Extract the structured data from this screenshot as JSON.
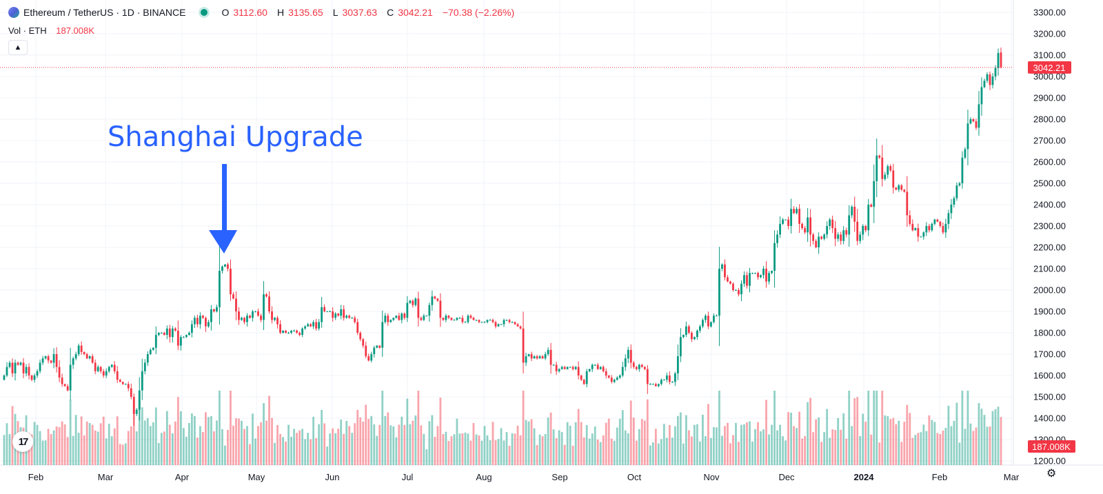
{
  "header": {
    "symbol": "Ethereum / TetherUS · 1D · BINANCE",
    "o_label": "O",
    "o_value": "3112.60",
    "h_label": "H",
    "h_value": "3135.65",
    "l_label": "L",
    "l_value": "3037.63",
    "c_label": "C",
    "c_value": "3042.21",
    "change": "−70.38 (−2.26%)"
  },
  "volume_legend": {
    "label": "Vol · ETH",
    "value": "187.008K"
  },
  "annotation": {
    "text": "Shanghai Upgrade"
  },
  "logo": {
    "text": "17"
  },
  "colors": {
    "up": "#089981",
    "down": "#f23645",
    "annotation": "#2962ff",
    "grid": "#f0f3fa"
  },
  "icons": {
    "collapse": "chevron-up-icon",
    "settings": "gear-icon",
    "logo": "tradingview-logo-icon"
  },
  "chart_data": {
    "type": "candlestick",
    "price_axis": {
      "min": 1200,
      "max": 3300,
      "ticks": [
        "3300.00",
        "3200.00",
        "3100.00",
        "3000.00",
        "2900.00",
        "2800.00",
        "2700.00",
        "2600.00",
        "2500.00",
        "2400.00",
        "2300.00",
        "2200.00",
        "2100.00",
        "2000.00",
        "1900.00",
        "1800.00",
        "1700.00",
        "1600.00",
        "1500.00",
        "1400.00",
        "1300.00",
        "1200.00"
      ]
    },
    "time_axis": {
      "labels": [
        "Feb",
        "Mar",
        "Apr",
        "May",
        "Jun",
        "Jul",
        "Aug",
        "Sep",
        "Oct",
        "Nov",
        "Dec",
        "2024",
        "Feb",
        "Mar"
      ],
      "bold": "2024"
    },
    "last_price": "3042.21",
    "last_volume": "187.008K",
    "daily_closes": [
      1600,
      1640,
      1660,
      1610,
      1660,
      1650,
      1660,
      1610,
      1640,
      1600,
      1580,
      1600,
      1620,
      1660,
      1680,
      1690,
      1670,
      1660,
      1700,
      1640,
      1590,
      1560,
      1550,
      1530,
      1650,
      1680,
      1700,
      1740,
      1710,
      1700,
      1680,
      1690,
      1660,
      1620,
      1640,
      1620,
      1600,
      1620,
      1640,
      1650,
      1620,
      1580,
      1570,
      1560,
      1560,
      1540,
      1500,
      1420,
      1440,
      1530,
      1620,
      1660,
      1700,
      1720,
      1730,
      1790,
      1800,
      1800,
      1790,
      1820,
      1780,
      1820,
      1810,
      1740,
      1780,
      1780,
      1790,
      1800,
      1840,
      1870,
      1840,
      1880,
      1870,
      1830,
      1850,
      1910,
      1900,
      1920,
      2090,
      2110,
      2120,
      2100,
      1980,
      1960,
      1900,
      1860,
      1870,
      1850,
      1880,
      1870,
      1900,
      1900,
      1880,
      1860,
      1980,
      1970,
      1900,
      1860,
      1870,
      1840,
      1800,
      1810,
      1800,
      1800,
      1810,
      1810,
      1800,
      1790,
      1820,
      1830,
      1840,
      1830,
      1850,
      1820,
      1850,
      1920,
      1900,
      1900,
      1900,
      1870,
      1890,
      1880,
      1910,
      1870,
      1880,
      1870,
      1870,
      1850,
      1800,
      1770,
      1740,
      1690,
      1670,
      1700,
      1730,
      1740,
      1730,
      1850,
      1880,
      1850,
      1860,
      1870,
      1880,
      1860,
      1890,
      1870,
      1940,
      1950,
      1930,
      1960,
      1870,
      1860,
      1880,
      1880,
      1930,
      1970,
      1960,
      1950,
      1870,
      1860,
      1880,
      1870,
      1860,
      1860,
      1870,
      1870,
      1850,
      1850,
      1880,
      1870,
      1860,
      1860,
      1850,
      1850,
      1850,
      1860,
      1860,
      1850,
      1830,
      1840,
      1840,
      1860,
      1860,
      1850,
      1850,
      1840,
      1830,
      1820,
      1660,
      1690,
      1700,
      1680,
      1690,
      1680,
      1690,
      1680,
      1700,
      1720,
      1650,
      1650,
      1620,
      1630,
      1640,
      1630,
      1640,
      1640,
      1630,
      1640,
      1600,
      1580,
      1560,
      1620,
      1630,
      1650,
      1650,
      1630,
      1640,
      1620,
      1600,
      1590,
      1570,
      1580,
      1590,
      1600,
      1640,
      1680,
      1720,
      1660,
      1640,
      1630,
      1650,
      1640,
      1630,
      1560,
      1560,
      1560,
      1550,
      1560,
      1580,
      1580,
      1600,
      1570,
      1570,
      1610,
      1690,
      1780,
      1790,
      1830,
      1800,
      1770,
      1780,
      1810,
      1830,
      1860,
      1880,
      1830,
      1850,
      1880,
      1880,
      2100,
      2120,
      2060,
      2040,
      2030,
      2000,
      2000,
      1980,
      2030,
      2070,
      2020,
      2080,
      2080,
      2080,
      2060,
      2070,
      2100,
      2040,
      2080,
      2090,
      2220,
      2260,
      2310,
      2330,
      2330,
      2300,
      2380,
      2360,
      2380,
      2310,
      2290,
      2270,
      2340,
      2260,
      2230,
      2200,
      2250,
      2240,
      2260,
      2300,
      2330,
      2290,
      2240,
      2260,
      2230,
      2280,
      2260,
      2350,
      2390,
      2320,
      2230,
      2260,
      2300,
      2280,
      2400,
      2390,
      2510,
      2630,
      2620,
      2520,
      2540,
      2580,
      2560,
      2480,
      2470,
      2490,
      2470,
      2460,
      2350,
      2310,
      2280,
      2290,
      2250,
      2250,
      2270,
      2300,
      2280,
      2310,
      2330,
      2320,
      2300,
      2270,
      2310,
      2360,
      2400,
      2430,
      2490,
      2500,
      2620,
      2660,
      2780,
      2800,
      2790,
      2760,
      2870,
      2950,
      2980,
      3010,
      2960,
      3000,
      3040,
      3110,
      3042.21
    ],
    "volume_axis_max": "1600K"
  }
}
